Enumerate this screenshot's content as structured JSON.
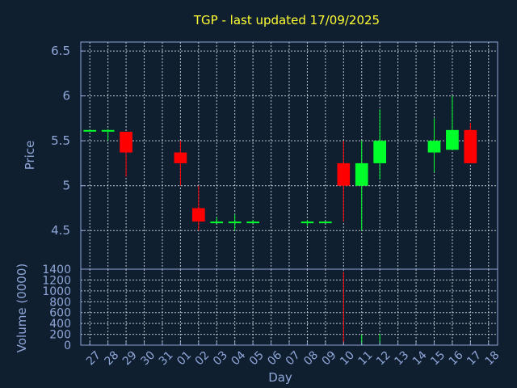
{
  "title": "TGP - last updated 17/09/2025",
  "colors": {
    "up": "#00ff2a",
    "down": "#ff0000",
    "background": "#0f1f30",
    "axis": "#8fa6d8",
    "title": "#ffff33",
    "grid": "#d0d8e0"
  },
  "chart_data": [
    {
      "type": "candlestick",
      "ylabel": "Price",
      "ylim": [
        4.07,
        6.6
      ],
      "yticks": [
        "4.5",
        "5",
        "5.5",
        "6",
        "6.5"
      ],
      "grid": true,
      "candles": [
        {
          "day": "27",
          "open": 5.62,
          "close": 5.62,
          "high": 5.62,
          "low": 5.62
        },
        {
          "day": "28",
          "open": 5.62,
          "close": 5.62,
          "high": 5.63,
          "low": 5.5
        },
        {
          "day": "29",
          "open": 5.6,
          "close": 5.37,
          "high": 5.6,
          "low": 5.1
        },
        {
          "day": "01",
          "open": 5.37,
          "close": 5.25,
          "high": 5.5,
          "low": 5.0
        },
        {
          "day": "02",
          "open": 4.75,
          "close": 4.6,
          "high": 5.0,
          "low": 4.5
        },
        {
          "day": "03",
          "open": 4.6,
          "close": 4.6,
          "high": 4.65,
          "low": 4.58
        },
        {
          "day": "04",
          "open": 4.6,
          "close": 4.6,
          "high": 4.68,
          "low": 4.5
        },
        {
          "day": "05",
          "open": 4.6,
          "close": 4.6,
          "high": 4.62,
          "low": 4.58
        },
        {
          "day": "08",
          "open": 4.6,
          "close": 4.6,
          "high": 4.62,
          "low": 4.55
        },
        {
          "day": "09",
          "open": 4.6,
          "close": 4.6,
          "high": 4.6,
          "low": 4.6
        },
        {
          "day": "10",
          "open": 5.25,
          "close": 5.0,
          "high": 5.5,
          "low": 4.6
        },
        {
          "day": "11",
          "open": 5.0,
          "close": 5.25,
          "high": 5.5,
          "low": 4.5
        },
        {
          "day": "12",
          "open": 5.25,
          "close": 5.5,
          "high": 5.85,
          "low": 5.07
        },
        {
          "day": "15",
          "open": 5.37,
          "close": 5.5,
          "high": 5.75,
          "low": 5.15
        },
        {
          "day": "16",
          "open": 5.4,
          "close": 5.62,
          "high": 6.0,
          "low": 5.4
        },
        {
          "day": "17",
          "open": 5.62,
          "close": 5.25,
          "high": 5.7,
          "low": 5.25
        }
      ]
    },
    {
      "type": "bar",
      "ylabel": "Volume (0000)",
      "ylim": [
        0,
        1400
      ],
      "yticks": [
        "0",
        "200",
        "400",
        "600",
        "800",
        "1000",
        "1200",
        "1400"
      ],
      "grid": true,
      "xlabel": "Day",
      "categories": [
        "27",
        "28",
        "29",
        "30",
        "31",
        "01",
        "02",
        "03",
        "04",
        "05",
        "06",
        "07",
        "08",
        "09",
        "10",
        "11",
        "12",
        "13",
        "14",
        "15",
        "16",
        "17",
        "18"
      ],
      "volumes": [
        {
          "day": "02",
          "value": 10,
          "direction": "down"
        },
        {
          "day": "05",
          "value": 5,
          "direction": "up"
        },
        {
          "day": "10",
          "value": 1350,
          "direction": "down"
        },
        {
          "day": "11",
          "value": 190,
          "direction": "up"
        },
        {
          "day": "12",
          "value": 210,
          "direction": "up"
        },
        {
          "day": "17",
          "value": 20,
          "direction": "down"
        }
      ]
    }
  ]
}
